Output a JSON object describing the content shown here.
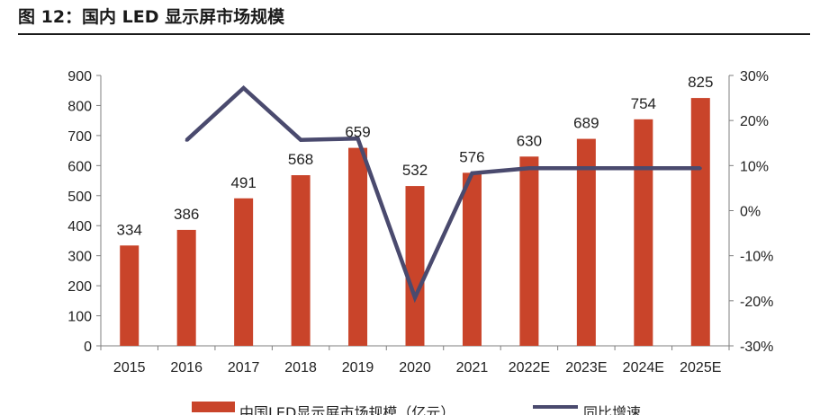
{
  "figure": {
    "title": "图 12：国内 LED 显示屏市场规模"
  },
  "chart_data": {
    "type": "bar",
    "title": "图 12：国内 LED 显示屏市场规模",
    "categories": [
      "2015",
      "2016",
      "2017",
      "2018",
      "2019",
      "2020",
      "2021",
      "2022E",
      "2023E",
      "2024E",
      "2025E"
    ],
    "series": [
      {
        "name": "中国LED显示屏市场规模（亿元）",
        "type": "bar",
        "axis": "left",
        "color": "#c9442a",
        "values": [
          334,
          386,
          491,
          568,
          659,
          532,
          576,
          630,
          689,
          754,
          825
        ]
      },
      {
        "name": "同比增速",
        "type": "line",
        "axis": "right",
        "color": "#4a4a6e",
        "values": [
          null,
          15.6,
          27.2,
          15.7,
          16.0,
          -19.3,
          8.3,
          9.4,
          9.4,
          9.4,
          9.4
        ]
      }
    ],
    "y_left": {
      "ylim": [
        0,
        900
      ],
      "ticks": [
        "0",
        "100",
        "200",
        "300",
        "400",
        "500",
        "600",
        "700",
        "800",
        "900"
      ]
    },
    "y_right": {
      "ylim": [
        -30,
        30
      ],
      "ticks": [
        "-30%",
        "-20%",
        "-10%",
        "0%",
        "10%",
        "20%",
        "30%"
      ]
    },
    "legend": {
      "position": "bottom",
      "items": [
        "中国LED显示屏市场规模（亿元）",
        "同比增速"
      ]
    },
    "grid": false
  }
}
